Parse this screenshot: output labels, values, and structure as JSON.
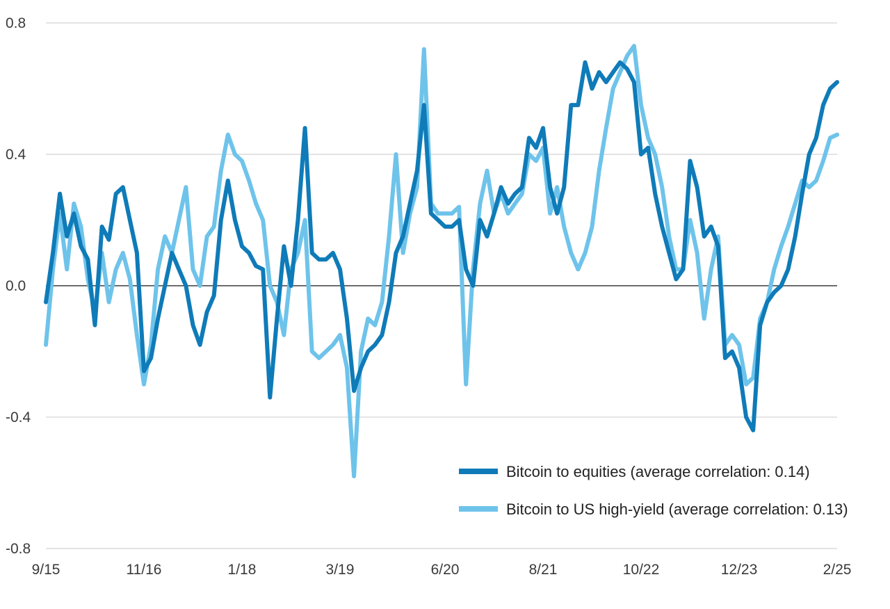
{
  "chart_data": {
    "type": "line",
    "title": "",
    "xlabel": "",
    "ylabel": "",
    "ylim": [
      -0.8,
      0.8
    ],
    "yticks": [
      "0.8",
      "0.4",
      "0.0",
      "-0.4",
      "-0.8"
    ],
    "ytick_values": [
      0.8,
      0.4,
      0.0,
      -0.4,
      -0.8
    ],
    "xlim": [
      "2015-09",
      "2025-02"
    ],
    "xticks": [
      {
        "label": "9/15",
        "date": "2015-09"
      },
      {
        "label": "11/16",
        "date": "2016-11"
      },
      {
        "label": "1/18",
        "date": "2018-01"
      },
      {
        "label": "3/19",
        "date": "2019-03"
      },
      {
        "label": "6/20",
        "date": "2020-06"
      },
      {
        "label": "8/21",
        "date": "2021-08"
      },
      {
        "label": "10/22",
        "date": "2022-10"
      },
      {
        "label": "12/23",
        "date": "2023-12"
      },
      {
        "label": "2/25",
        "date": "2025-02"
      }
    ],
    "grid": true,
    "legend_position": "bottom-right",
    "series": [
      {
        "name": "Bitcoin to equities (average correlation: 0.14)",
        "color": "#0f7bb8",
        "points": [
          [
            "2015-09",
            -0.05
          ],
          [
            "2015-10",
            0.1
          ],
          [
            "2015-11",
            0.28
          ],
          [
            "2015-12",
            0.15
          ],
          [
            "2016-01",
            0.22
          ],
          [
            "2016-02",
            0.12
          ],
          [
            "2016-03",
            0.08
          ],
          [
            "2016-04",
            -0.12
          ],
          [
            "2016-05",
            0.18
          ],
          [
            "2016-06",
            0.14
          ],
          [
            "2016-07",
            0.28
          ],
          [
            "2016-08",
            0.3
          ],
          [
            "2016-09",
            0.2
          ],
          [
            "2016-10",
            0.1
          ],
          [
            "2016-11",
            -0.26
          ],
          [
            "2016-12",
            -0.22
          ],
          [
            "2017-01",
            -0.1
          ],
          [
            "2017-02",
            0.0
          ],
          [
            "2017-03",
            0.1
          ],
          [
            "2017-04",
            0.05
          ],
          [
            "2017-05",
            0.0
          ],
          [
            "2017-06",
            -0.12
          ],
          [
            "2017-07",
            -0.18
          ],
          [
            "2017-08",
            -0.08
          ],
          [
            "2017-09",
            -0.03
          ],
          [
            "2017-10",
            0.2
          ],
          [
            "2017-11",
            0.32
          ],
          [
            "2017-12",
            0.2
          ],
          [
            "2018-01",
            0.12
          ],
          [
            "2018-02",
            0.1
          ],
          [
            "2018-03",
            0.06
          ],
          [
            "2018-04",
            0.05
          ],
          [
            "2018-05",
            -0.34
          ],
          [
            "2018-06",
            -0.1
          ],
          [
            "2018-07",
            0.12
          ],
          [
            "2018-08",
            0.0
          ],
          [
            "2018-09",
            0.2
          ],
          [
            "2018-10",
            0.48
          ],
          [
            "2018-11",
            0.1
          ],
          [
            "2018-12",
            0.08
          ],
          [
            "2019-01",
            0.08
          ],
          [
            "2019-02",
            0.1
          ],
          [
            "2019-03",
            0.05
          ],
          [
            "2019-04",
            -0.1
          ],
          [
            "2019-05",
            -0.32
          ],
          [
            "2019-06",
            -0.25
          ],
          [
            "2019-07",
            -0.2
          ],
          [
            "2019-08",
            -0.18
          ],
          [
            "2019-09",
            -0.15
          ],
          [
            "2019-10",
            -0.05
          ],
          [
            "2019-11",
            0.1
          ],
          [
            "2019-12",
            0.15
          ],
          [
            "2020-01",
            0.25
          ],
          [
            "2020-02",
            0.35
          ],
          [
            "2020-03",
            0.55
          ],
          [
            "2020-04",
            0.22
          ],
          [
            "2020-05",
            0.2
          ],
          [
            "2020-06",
            0.18
          ],
          [
            "2020-07",
            0.18
          ],
          [
            "2020-08",
            0.2
          ],
          [
            "2020-09",
            0.05
          ],
          [
            "2020-10",
            0.0
          ],
          [
            "2020-11",
            0.2
          ],
          [
            "2020-12",
            0.15
          ],
          [
            "2021-01",
            0.22
          ],
          [
            "2021-02",
            0.3
          ],
          [
            "2021-03",
            0.25
          ],
          [
            "2021-04",
            0.28
          ],
          [
            "2021-05",
            0.3
          ],
          [
            "2021-06",
            0.45
          ],
          [
            "2021-07",
            0.42
          ],
          [
            "2021-08",
            0.48
          ],
          [
            "2021-09",
            0.3
          ],
          [
            "2021-10",
            0.22
          ],
          [
            "2021-11",
            0.3
          ],
          [
            "2021-12",
            0.55
          ],
          [
            "2022-01",
            0.55
          ],
          [
            "2022-02",
            0.68
          ],
          [
            "2022-03",
            0.6
          ],
          [
            "2022-04",
            0.65
          ],
          [
            "2022-05",
            0.62
          ],
          [
            "2022-06",
            0.65
          ],
          [
            "2022-07",
            0.68
          ],
          [
            "2022-08",
            0.66
          ],
          [
            "2022-09",
            0.62
          ],
          [
            "2022-10",
            0.4
          ],
          [
            "2022-11",
            0.42
          ],
          [
            "2022-12",
            0.28
          ],
          [
            "2023-01",
            0.18
          ],
          [
            "2023-02",
            0.1
          ],
          [
            "2023-03",
            0.02
          ],
          [
            "2023-04",
            0.05
          ],
          [
            "2023-05",
            0.38
          ],
          [
            "2023-06",
            0.3
          ],
          [
            "2023-07",
            0.15
          ],
          [
            "2023-08",
            0.18
          ],
          [
            "2023-09",
            0.12
          ],
          [
            "2023-10",
            -0.22
          ],
          [
            "2023-11",
            -0.2
          ],
          [
            "2023-12",
            -0.25
          ],
          [
            "2024-01",
            -0.4
          ],
          [
            "2024-02",
            -0.44
          ],
          [
            "2024-03",
            -0.12
          ],
          [
            "2024-04",
            -0.05
          ],
          [
            "2024-05",
            -0.02
          ],
          [
            "2024-06",
            0.0
          ],
          [
            "2024-07",
            0.05
          ],
          [
            "2024-08",
            0.15
          ],
          [
            "2024-09",
            0.28
          ],
          [
            "2024-10",
            0.4
          ],
          [
            "2024-11",
            0.45
          ],
          [
            "2024-12",
            0.55
          ],
          [
            "2025-01",
            0.6
          ],
          [
            "2025-02",
            0.62
          ]
        ]
      },
      {
        "name": "Bitcoin to US high-yield (average correlation: 0.13)",
        "color": "#6ec3ea",
        "points": [
          [
            "2015-09",
            -0.18
          ],
          [
            "2015-10",
            0.05
          ],
          [
            "2015-11",
            0.22
          ],
          [
            "2015-12",
            0.05
          ],
          [
            "2016-01",
            0.25
          ],
          [
            "2016-02",
            0.18
          ],
          [
            "2016-03",
            0.02
          ],
          [
            "2016-04",
            -0.08
          ],
          [
            "2016-05",
            0.1
          ],
          [
            "2016-06",
            -0.05
          ],
          [
            "2016-07",
            0.05
          ],
          [
            "2016-08",
            0.1
          ],
          [
            "2016-09",
            0.02
          ],
          [
            "2016-10",
            -0.15
          ],
          [
            "2016-11",
            -0.3
          ],
          [
            "2016-12",
            -0.18
          ],
          [
            "2017-01",
            0.05
          ],
          [
            "2017-02",
            0.15
          ],
          [
            "2017-03",
            0.1
          ],
          [
            "2017-04",
            0.2
          ],
          [
            "2017-05",
            0.3
          ],
          [
            "2017-06",
            0.05
          ],
          [
            "2017-07",
            0.0
          ],
          [
            "2017-08",
            0.15
          ],
          [
            "2017-09",
            0.18
          ],
          [
            "2017-10",
            0.35
          ],
          [
            "2017-11",
            0.46
          ],
          [
            "2017-12",
            0.4
          ],
          [
            "2018-01",
            0.38
          ],
          [
            "2018-02",
            0.32
          ],
          [
            "2018-03",
            0.25
          ],
          [
            "2018-04",
            0.2
          ],
          [
            "2018-05",
            0.0
          ],
          [
            "2018-06",
            -0.05
          ],
          [
            "2018-07",
            -0.15
          ],
          [
            "2018-08",
            0.05
          ],
          [
            "2018-09",
            0.1
          ],
          [
            "2018-10",
            0.2
          ],
          [
            "2018-11",
            -0.2
          ],
          [
            "2018-12",
            -0.22
          ],
          [
            "2019-01",
            -0.2
          ],
          [
            "2019-02",
            -0.18
          ],
          [
            "2019-03",
            -0.15
          ],
          [
            "2019-04",
            -0.25
          ],
          [
            "2019-05",
            -0.58
          ],
          [
            "2019-06",
            -0.2
          ],
          [
            "2019-07",
            -0.1
          ],
          [
            "2019-08",
            -0.12
          ],
          [
            "2019-09",
            -0.05
          ],
          [
            "2019-10",
            0.15
          ],
          [
            "2019-11",
            0.4
          ],
          [
            "2019-12",
            0.1
          ],
          [
            "2020-01",
            0.22
          ],
          [
            "2020-02",
            0.3
          ],
          [
            "2020-03",
            0.72
          ],
          [
            "2020-04",
            0.25
          ],
          [
            "2020-05",
            0.22
          ],
          [
            "2020-06",
            0.22
          ],
          [
            "2020-07",
            0.22
          ],
          [
            "2020-08",
            0.24
          ],
          [
            "2020-09",
            -0.3
          ],
          [
            "2020-10",
            0.05
          ],
          [
            "2020-11",
            0.25
          ],
          [
            "2020-12",
            0.35
          ],
          [
            "2021-01",
            0.22
          ],
          [
            "2021-02",
            0.28
          ],
          [
            "2021-03",
            0.22
          ],
          [
            "2021-04",
            0.25
          ],
          [
            "2021-05",
            0.28
          ],
          [
            "2021-06",
            0.4
          ],
          [
            "2021-07",
            0.38
          ],
          [
            "2021-08",
            0.42
          ],
          [
            "2021-09",
            0.22
          ],
          [
            "2021-10",
            0.3
          ],
          [
            "2021-11",
            0.18
          ],
          [
            "2021-12",
            0.1
          ],
          [
            "2022-01",
            0.05
          ],
          [
            "2022-02",
            0.1
          ],
          [
            "2022-03",
            0.18
          ],
          [
            "2022-04",
            0.35
          ],
          [
            "2022-05",
            0.48
          ],
          [
            "2022-06",
            0.6
          ],
          [
            "2022-07",
            0.65
          ],
          [
            "2022-08",
            0.7
          ],
          [
            "2022-09",
            0.73
          ],
          [
            "2022-10",
            0.55
          ],
          [
            "2022-11",
            0.45
          ],
          [
            "2022-12",
            0.4
          ],
          [
            "2023-01",
            0.3
          ],
          [
            "2023-02",
            0.15
          ],
          [
            "2023-03",
            0.05
          ],
          [
            "2023-04",
            0.05
          ],
          [
            "2023-05",
            0.2
          ],
          [
            "2023-06",
            0.1
          ],
          [
            "2023-07",
            -0.1
          ],
          [
            "2023-08",
            0.05
          ],
          [
            "2023-09",
            0.15
          ],
          [
            "2023-10",
            -0.18
          ],
          [
            "2023-11",
            -0.15
          ],
          [
            "2023-12",
            -0.18
          ],
          [
            "2024-01",
            -0.3
          ],
          [
            "2024-02",
            -0.28
          ],
          [
            "2024-03",
            -0.1
          ],
          [
            "2024-04",
            -0.05
          ],
          [
            "2024-05",
            0.05
          ],
          [
            "2024-06",
            0.12
          ],
          [
            "2024-07",
            0.18
          ],
          [
            "2024-08",
            0.25
          ],
          [
            "2024-09",
            0.32
          ],
          [
            "2024-10",
            0.3
          ],
          [
            "2024-11",
            0.32
          ],
          [
            "2024-12",
            0.38
          ],
          [
            "2025-01",
            0.45
          ],
          [
            "2025-02",
            0.46
          ]
        ]
      }
    ]
  }
}
